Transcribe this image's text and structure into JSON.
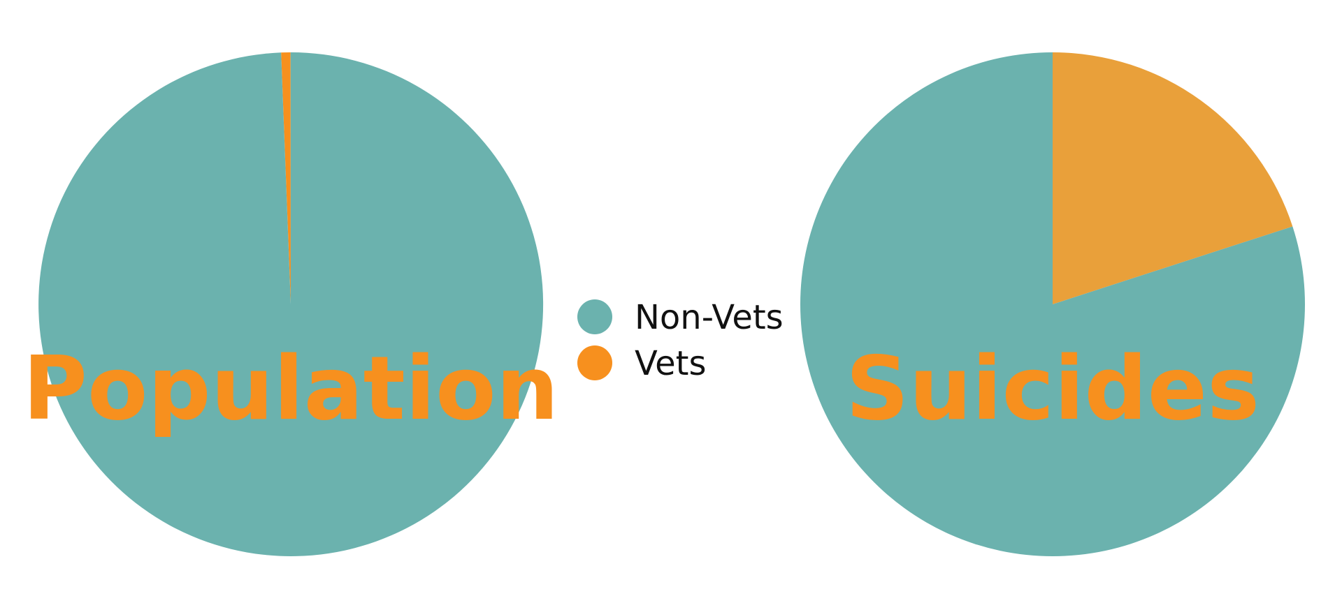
{
  "chart_data": [
    {
      "type": "pie",
      "title": "Population",
      "slices": [
        {
          "label": "Non-Vets",
          "value": 99.4,
          "color": "#6bb2ae"
        },
        {
          "label": "Vets",
          "value": 0.6,
          "color": "#f7901e"
        }
      ]
    },
    {
      "type": "pie",
      "title": "Suicides",
      "slices": [
        {
          "label": "Non-Vets",
          "value": 80,
          "color": "#6bb2ae"
        },
        {
          "label": "Vets",
          "value": 20,
          "color": "#e9a03a"
        }
      ]
    }
  ],
  "legend": {
    "placement": "center",
    "items": [
      {
        "label": "Non-Vets",
        "color": "#6bb2ae"
      },
      {
        "label": "Vets",
        "color": "#f7901e"
      }
    ]
  }
}
